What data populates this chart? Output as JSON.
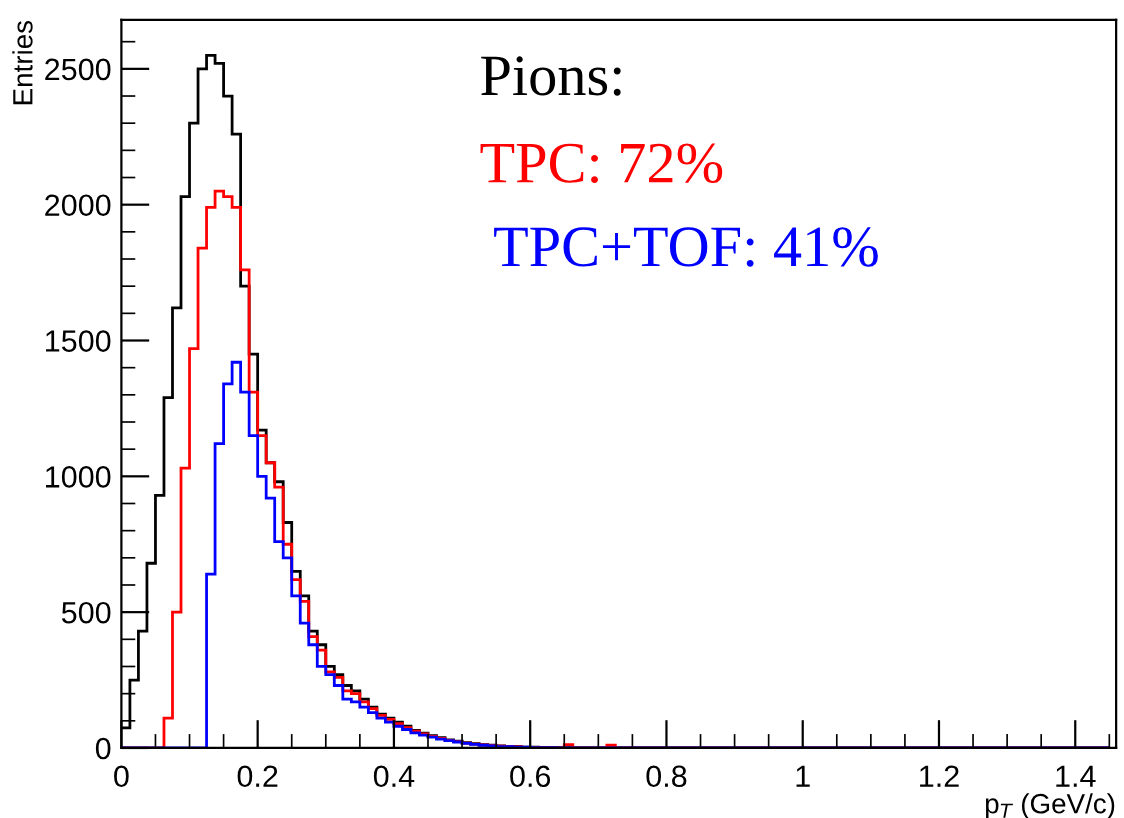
{
  "chart_data": {
    "type": "histogram",
    "xlabel": "p$_{T}$ (GeV/c)",
    "ylabel": "Entries",
    "annotations": [
      "Pions:",
      "TPC: 72%",
      " TPC+TOF: 41%"
    ],
    "bins": [
      0,
      0.0125,
      0.025,
      0.0375,
      0.05,
      0.0625,
      0.075,
      0.0875,
      0.1,
      0.1125,
      0.125,
      0.1375,
      0.15,
      0.1625,
      0.175,
      0.1875,
      0.2,
      0.2125,
      0.225,
      0.2375,
      0.25,
      0.2625,
      0.275,
      0.2875,
      0.3,
      0.3125,
      0.325,
      0.3375,
      0.35,
      0.3625,
      0.375,
      0.3875,
      0.4,
      0.4125,
      0.425,
      0.4375,
      0.45,
      0.4625,
      0.475,
      0.4875,
      0.5,
      0.5125,
      0.525,
      0.5375,
      0.55,
      0.5625,
      0.575,
      0.5875,
      0.6,
      0.6125,
      0.625,
      0.6375,
      0.65,
      0.6625,
      0.675,
      0.6875,
      0.7,
      0.7125,
      0.725,
      0.7375,
      0.75,
      0.7625,
      0.775,
      0.7875,
      0.8,
      0.8125,
      0.825,
      0.8375,
      0.85,
      0.8625,
      0.875,
      0.8875,
      0.9,
      0.9125,
      0.925,
      0.9375,
      0.95,
      0.9625,
      0.975,
      0.9875,
      1,
      1.0125,
      1.025,
      1.0375,
      1.05,
      1.0625,
      1.075,
      1.0875,
      1.1,
      1.1125,
      1.125,
      1.1375,
      1.15,
      1.1625,
      1.175,
      1.1875,
      1.2,
      1.2125,
      1.225,
      1.2375,
      1.25,
      1.2625,
      1.275,
      1.2875,
      1.3,
      1.3125,
      1.325,
      1.3375,
      1.35,
      1.3625,
      1.375,
      1.3875,
      1.4,
      1.4125,
      1.425,
      1.4375,
      1.45
    ],
    "series": [
      {
        "color": "#000000",
        "values": [
          74,
          250,
          430,
          680,
          930,
          1290,
          1620,
          2030,
          2300,
          2500,
          2550,
          2520,
          2400,
          2260,
          1700,
          1450,
          1170,
          1050,
          980,
          830,
          650,
          560,
          430,
          380,
          300,
          270,
          230,
          210,
          180,
          150,
          125,
          110,
          95,
          80,
          65,
          55,
          45,
          38,
          30,
          25,
          20,
          16,
          12,
          10,
          8,
          6,
          5,
          4,
          3,
          2,
          2,
          1,
          1,
          0,
          0,
          0,
          0,
          0,
          0,
          0,
          0,
          0,
          0,
          0,
          0,
          0,
          0,
          0,
          0,
          0,
          0,
          0,
          0,
          0,
          0,
          0,
          0,
          0,
          0,
          0,
          0,
          0,
          0,
          0,
          0,
          0,
          0,
          0,
          0,
          0,
          0,
          0,
          0,
          0,
          0,
          0,
          0,
          0,
          0,
          0,
          0,
          0,
          0,
          0,
          0,
          0,
          0,
          0,
          0,
          0,
          0,
          0,
          0,
          0,
          0,
          0
        ]
      },
      {
        "color": "#ff0000",
        "values": [
          0,
          0,
          0,
          0,
          0,
          110,
          500,
          1030,
          1470,
          1840,
          1990,
          2050,
          2030,
          1990,
          1760,
          1310,
          1150,
          1050,
          960,
          750,
          620,
          540,
          410,
          360,
          280,
          260,
          210,
          200,
          170,
          145,
          120,
          105,
          90,
          75,
          62,
          52,
          43,
          35,
          28,
          23,
          18,
          14,
          11,
          9,
          7,
          5,
          4,
          3,
          2,
          2,
          1,
          1,
          12,
          0,
          0,
          0,
          0,
          10,
          0,
          0,
          0,
          0,
          0,
          0,
          0,
          0,
          0,
          0,
          0,
          0,
          0,
          0,
          0,
          0,
          0,
          0,
          0,
          0,
          0,
          0,
          0,
          0,
          0,
          0,
          0,
          0,
          0,
          0,
          0,
          0,
          0,
          0,
          0,
          0,
          0,
          0,
          0,
          0,
          0,
          0,
          0,
          0,
          0,
          0,
          0,
          0,
          0,
          0,
          0,
          0,
          0,
          0,
          0,
          0,
          0,
          0
        ]
      },
      {
        "color": "#0000ff",
        "values": [
          0,
          0,
          0,
          0,
          0,
          0,
          0,
          0,
          0,
          0,
          640,
          1120,
          1340,
          1420,
          1310,
          1150,
          1000,
          920,
          760,
          700,
          560,
          460,
          380,
          300,
          270,
          230,
          180,
          170,
          150,
          130,
          110,
          95,
          80,
          68,
          56,
          47,
          40,
          33,
          27,
          22,
          17,
          13,
          10,
          8,
          6,
          5,
          4,
          3,
          2,
          1,
          1,
          0,
          0,
          0,
          0,
          0,
          0,
          0,
          0,
          0,
          0,
          0,
          0,
          0,
          0,
          0,
          0,
          0,
          0,
          0,
          0,
          0,
          0,
          0,
          0,
          0,
          0,
          0,
          0,
          0,
          0,
          0,
          0,
          0,
          0,
          0,
          0,
          0,
          0,
          0,
          0,
          0,
          0,
          0,
          0,
          0,
          0,
          0,
          0,
          0,
          0,
          0,
          0,
          0,
          0,
          0,
          0,
          0,
          0,
          0,
          0,
          0,
          0,
          0,
          0,
          0
        ]
      }
    ],
    "xlim": [
      0,
      1.46
    ],
    "ylim": [
      0,
      2680
    ],
    "xticks": [
      0,
      0.2,
      0.4,
      0.6,
      0.8,
      1,
      1.2,
      1.4
    ],
    "yticks": [
      0,
      500,
      1000,
      1500,
      2000,
      2500
    ],
    "grid": false,
    "legend": false
  }
}
